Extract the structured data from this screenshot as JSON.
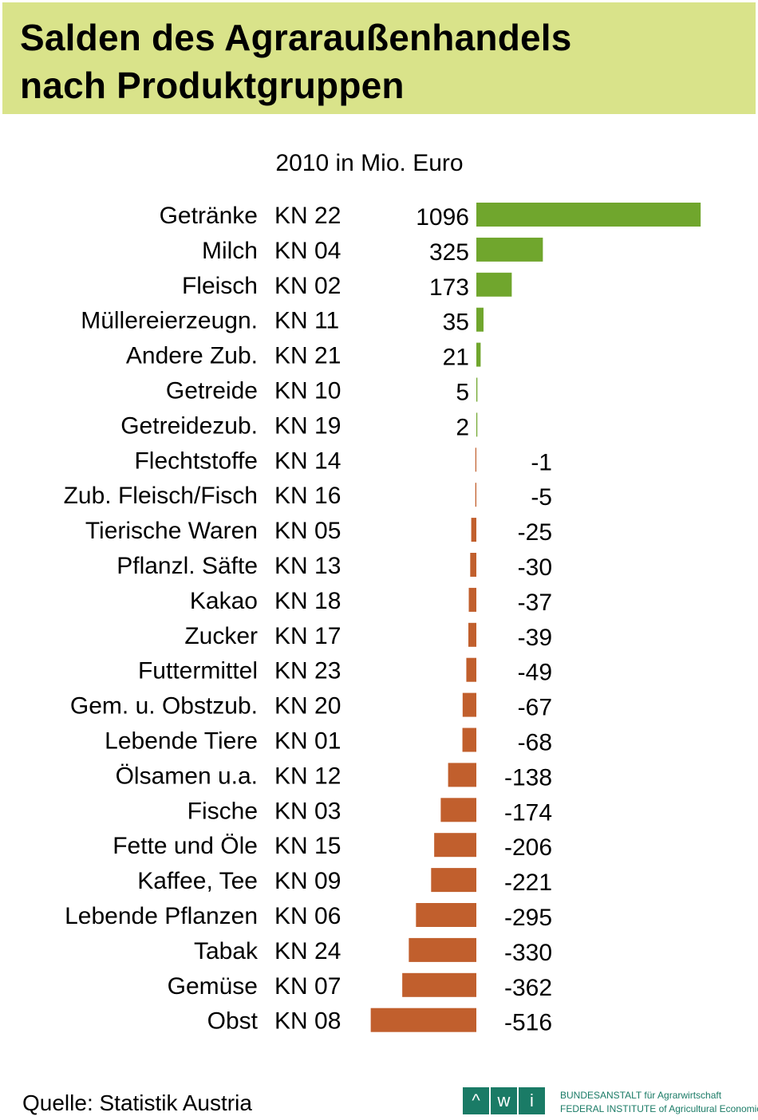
{
  "title_line1": "Salden des Agraraußenhandels",
  "title_line2": "nach Produktgruppen",
  "subtitle": "2010 in Mio. Euro",
  "source": "Quelle: Statistik Austria",
  "logo": {
    "letters": [
      "^",
      "w",
      "i"
    ],
    "line1": "BUNDESANSTALT für Agrarwirtschaft",
    "line2": "FEDERAL INSTITUTE of Agricultural Economics"
  },
  "colors": {
    "title_band": "#d9e38a",
    "positive": "#70a62d",
    "negative": "#c15f2d",
    "logo": "#1a7b66"
  },
  "chart_data": {
    "type": "bar",
    "orientation": "horizontal",
    "title": "Salden des Agraraußenhandels nach Produktgruppen",
    "subtitle": "2010 in Mio. Euro",
    "categories": [
      {
        "name": "Getränke",
        "code": "KN 22"
      },
      {
        "name": "Milch",
        "code": "KN 04"
      },
      {
        "name": "Fleisch",
        "code": "KN 02"
      },
      {
        "name": "Müllereierzeugn.",
        "code": "KN 11"
      },
      {
        "name": "Andere Zub.",
        "code": "KN 21"
      },
      {
        "name": "Getreide",
        "code": "KN 10"
      },
      {
        "name": "Getreidezub.",
        "code": "KN 19"
      },
      {
        "name": "Flechtstoffe",
        "code": "KN 14"
      },
      {
        "name": "Zub. Fleisch/Fisch",
        "code": "KN 16"
      },
      {
        "name": "Tierische Waren",
        "code": "KN 05"
      },
      {
        "name": "Pflanzl. Säfte",
        "code": "KN 13"
      },
      {
        "name": "Kakao",
        "code": "KN 18"
      },
      {
        "name": "Zucker",
        "code": "KN 17"
      },
      {
        "name": "Futtermittel",
        "code": "KN 23"
      },
      {
        "name": "Gem. u. Obstzub.",
        "code": "KN 20"
      },
      {
        "name": "Lebende Tiere",
        "code": "KN 01"
      },
      {
        "name": "Ölsamen u.a.",
        "code": "KN 12"
      },
      {
        "name": "Fische",
        "code": "KN 03"
      },
      {
        "name": "Fette und Öle",
        "code": "KN 15"
      },
      {
        "name": "Kaffee, Tee",
        "code": "KN 09"
      },
      {
        "name": "Lebende Pflanzen",
        "code": "KN 06"
      },
      {
        "name": "Tabak",
        "code": "KN 24"
      },
      {
        "name": "Gemüse",
        "code": "KN 07"
      },
      {
        "name": "Obst",
        "code": "KN 08"
      }
    ],
    "values": [
      1096,
      325,
      173,
      35,
      21,
      5,
      2,
      -1,
      -5,
      -25,
      -30,
      -37,
      -39,
      -49,
      -67,
      -68,
      -138,
      -174,
      -206,
      -221,
      -295,
      -330,
      -362,
      -516
    ],
    "xlim": [
      -516,
      1096
    ],
    "grid": false,
    "legend": "none"
  }
}
